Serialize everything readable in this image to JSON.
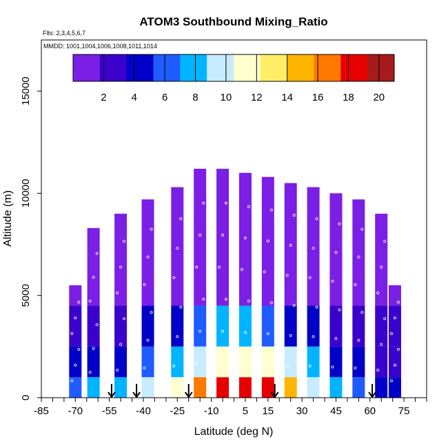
{
  "chart_data": {
    "type": "heatmap",
    "title": "ATOM3 Southbound Mixing_Ratio",
    "subtitle_flights": "Flts: 2,3,4,5,6,7",
    "dates_label": "MMDD: 1001,1004,1006,1008,1011,1014",
    "xlabel": "Latitude (deg N)",
    "ylabel": "Altitude (m)",
    "xlim": [
      -85,
      85
    ],
    "ylim": [
      0,
      17500
    ],
    "x_ticks": [
      -85,
      -70,
      -55,
      -40,
      -25,
      -10,
      5,
      15,
      30,
      45,
      60,
      75
    ],
    "y_ticks": [
      0,
      5000,
      10000,
      15000
    ],
    "colorbar": {
      "min": 0,
      "max": 21,
      "tick_labels": [
        2,
        4,
        6,
        8,
        10,
        12,
        14,
        16,
        18,
        20
      ],
      "colors": [
        "#7b1fe6",
        "#3a00cc",
        "#0000c8",
        "#1f5cff",
        "#00b4ff",
        "#c8ecff",
        "#ffffd0",
        "#ffee66",
        "#ffb400",
        "#ff7800",
        "#e60000",
        "#a51a1a"
      ]
    },
    "profile_arrows_lat": [
      -54,
      -43,
      -20,
      18,
      61
    ],
    "columns": [
      {
        "lat": -70,
        "top": 5500,
        "values": [
          [
            5000,
            1.5
          ],
          [
            3000,
            3
          ],
          [
            1500,
            4
          ],
          [
            500,
            6
          ]
        ]
      },
      {
        "lat": -62,
        "top": 8300,
        "values": [
          [
            6000,
            1.2
          ],
          [
            3500,
            2.5
          ],
          [
            1500,
            4
          ],
          [
            500,
            7
          ]
        ]
      },
      {
        "lat": -50,
        "top": 9000,
        "values": [
          [
            6000,
            1.5
          ],
          [
            3500,
            3
          ],
          [
            1500,
            5
          ],
          [
            500,
            8
          ]
        ]
      },
      {
        "lat": -38,
        "top": 9700,
        "values": [
          [
            6000,
            2
          ],
          [
            3500,
            3.5
          ],
          [
            1500,
            6
          ],
          [
            500,
            9
          ]
        ]
      },
      {
        "lat": -25,
        "top": 10300,
        "values": [
          [
            6000,
            2.5
          ],
          [
            3500,
            4.5
          ],
          [
            1500,
            8
          ],
          [
            500,
            11
          ]
        ]
      },
      {
        "lat": -15,
        "top": 11200,
        "values": [
          [
            6000,
            3
          ],
          [
            3500,
            6
          ],
          [
            1500,
            10
          ],
          [
            500,
            17
          ]
        ]
      },
      {
        "lat": -5,
        "top": 11200,
        "values": [
          [
            6000,
            3.5
          ],
          [
            3500,
            7
          ],
          [
            1500,
            12
          ],
          [
            500,
            18
          ]
        ]
      },
      {
        "lat": 5,
        "top": 11000,
        "values": [
          [
            6000,
            3.5
          ],
          [
            3500,
            7.5
          ],
          [
            1500,
            12
          ],
          [
            500,
            19
          ]
        ]
      },
      {
        "lat": 15,
        "top": 10800,
        "values": [
          [
            6000,
            3
          ],
          [
            3500,
            6.5
          ],
          [
            1500,
            11
          ],
          [
            500,
            19
          ]
        ]
      },
      {
        "lat": 25,
        "top": 10500,
        "values": [
          [
            6000,
            2.5
          ],
          [
            3500,
            5
          ],
          [
            1500,
            9
          ],
          [
            500,
            15
          ]
        ]
      },
      {
        "lat": 35,
        "top": 10300,
        "values": [
          [
            6000,
            2
          ],
          [
            3500,
            4
          ],
          [
            1500,
            7
          ],
          [
            500,
            9
          ]
        ]
      },
      {
        "lat": 45,
        "top": 10000,
        "values": [
          [
            6000,
            1.5
          ],
          [
            3500,
            3
          ],
          [
            1500,
            5
          ],
          [
            500,
            7
          ]
        ]
      },
      {
        "lat": 55,
        "top": 9700,
        "values": [
          [
            6000,
            1.2
          ],
          [
            3500,
            2.5
          ],
          [
            1500,
            4
          ],
          [
            500,
            6
          ]
        ]
      },
      {
        "lat": 65,
        "top": 9000,
        "values": [
          [
            6000,
            1
          ],
          [
            3500,
            2
          ],
          [
            1500,
            3
          ],
          [
            500,
            5
          ]
        ]
      },
      {
        "lat": 71,
        "top": 5500,
        "values": [
          [
            5000,
            1
          ],
          [
            3000,
            2
          ],
          [
            1500,
            3
          ],
          [
            500,
            4
          ]
        ]
      }
    ]
  }
}
